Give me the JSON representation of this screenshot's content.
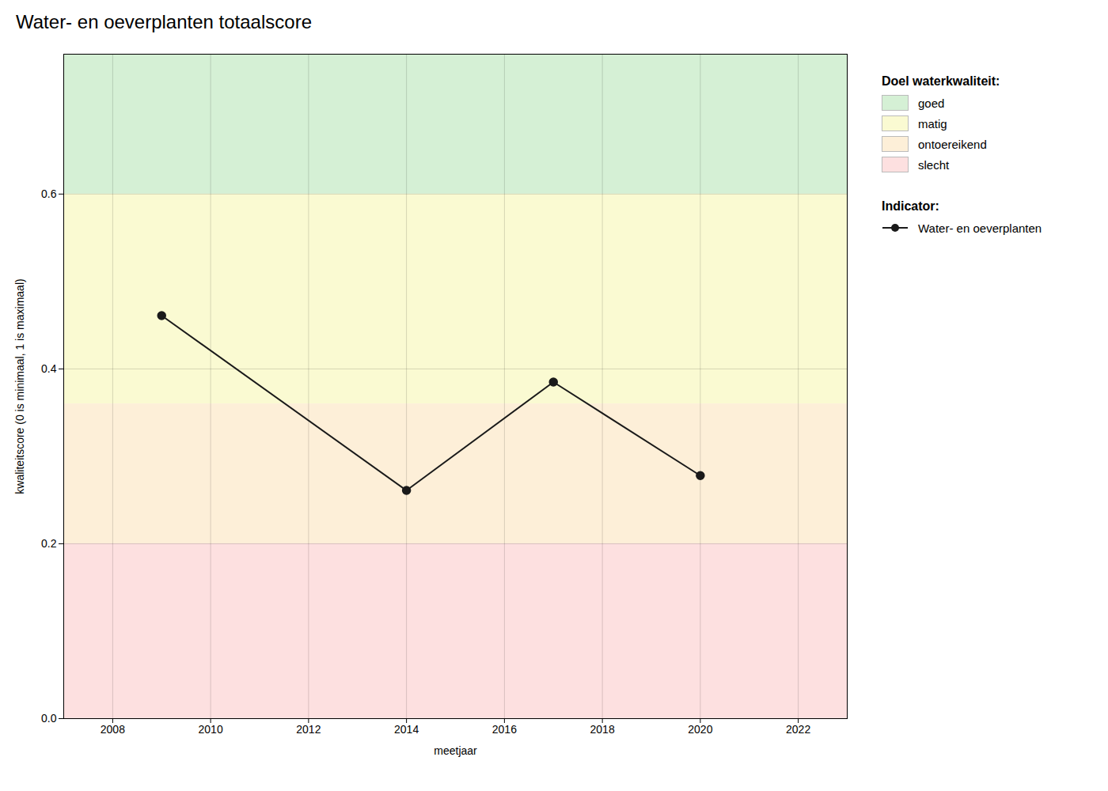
{
  "chart_data": {
    "type": "line",
    "title": "Water- en oeverplanten totaalscore",
    "xlabel": "meetjaar",
    "ylabel": "kwaliteitscore (0 is minimaal, 1 is maximaal)",
    "x": [
      2009,
      2014,
      2017,
      2020
    ],
    "series": [
      {
        "name": "Water- en oeverplanten",
        "color": "#1a1a1a",
        "marker": "circle",
        "values": [
          0.461,
          0.261,
          0.385,
          0.278
        ]
      }
    ],
    "xlim": [
      2007,
      2023
    ],
    "ylim": [
      0.0,
      0.76
    ],
    "xticks": [
      2008,
      2010,
      2012,
      2014,
      2016,
      2018,
      2020,
      2022
    ],
    "yticks": [
      {
        "value": 0.0,
        "label": "0.0"
      },
      0.2,
      0.4,
      0.6
    ],
    "grid": true,
    "legend": "right",
    "zones": [
      {
        "label": "goed",
        "ymin": 0.6,
        "ymax": 0.76,
        "color": "#d5f0d5"
      },
      {
        "label": "matig",
        "ymin": 0.36,
        "ymax": 0.6,
        "color": "#fafad2"
      },
      {
        "label": "ontoereikend",
        "ymin": 0.2,
        "ymax": 0.36,
        "color": "#fdefd8"
      },
      {
        "label": "slecht",
        "ymin": 0.0,
        "ymax": 0.2,
        "color": "#fde0e0"
      }
    ],
    "zones_legend_title": "Doel waterkwaliteit:",
    "series_legend_title": "Indicator:"
  }
}
